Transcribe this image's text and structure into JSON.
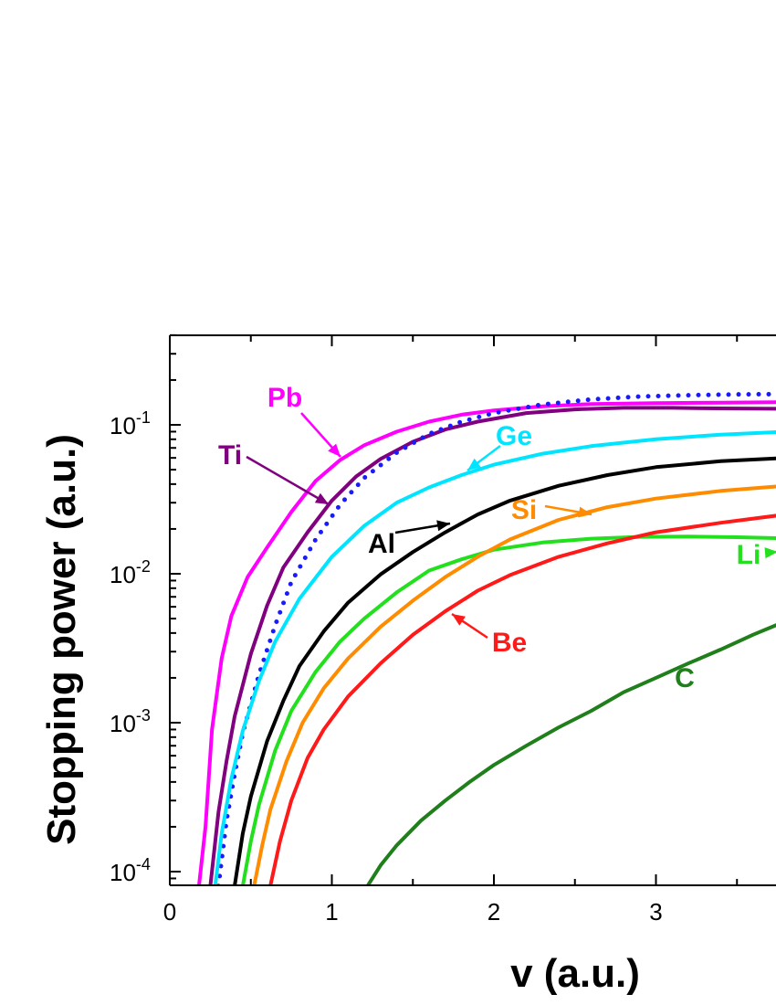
{
  "chart_data": {
    "type": "line",
    "xlabel": "v (a.u.)",
    "ylabel": "Stopping power (a.u.)",
    "xlim": [
      0,
      3.8
    ],
    "ylim": [
      8e-05,
      0.4
    ],
    "yscale": "log",
    "x_ticks": [
      "0",
      "1",
      "2",
      "3"
    ],
    "y_ticks": [
      {
        "base": "10",
        "exp": "-4"
      },
      {
        "base": "10",
        "exp": "-3"
      },
      {
        "base": "10",
        "exp": "-2"
      },
      {
        "base": "10",
        "exp": "-1"
      }
    ],
    "grid": false,
    "series": [
      {
        "name": "Pb",
        "color": "#ff00ff",
        "style": "solid",
        "x": [
          0.18,
          0.22,
          0.26,
          0.32,
          0.38,
          0.48,
          0.6,
          0.75,
          0.9,
          1.05,
          1.2,
          1.4,
          1.6,
          1.8,
          2.0,
          2.3,
          2.6,
          3.0,
          3.4,
          3.8
        ],
        "y": [
          8e-05,
          0.0002,
          0.0009,
          0.0027,
          0.0052,
          0.0095,
          0.015,
          0.026,
          0.042,
          0.058,
          0.073,
          0.09,
          0.105,
          0.117,
          0.125,
          0.133,
          0.138,
          0.14,
          0.141,
          0.142
        ]
      },
      {
        "name": "Ti",
        "color": "#800080",
        "style": "solid",
        "x": [
          0.25,
          0.3,
          0.35,
          0.4,
          0.5,
          0.6,
          0.7,
          0.85,
          1.0,
          1.15,
          1.3,
          1.5,
          1.7,
          1.9,
          2.2,
          2.5,
          2.8,
          3.1,
          3.4,
          3.8
        ],
        "y": [
          8e-05,
          0.00025,
          0.00055,
          0.0011,
          0.0029,
          0.0061,
          0.011,
          0.019,
          0.031,
          0.045,
          0.059,
          0.077,
          0.093,
          0.105,
          0.12,
          0.127,
          0.13,
          0.13,
          0.129,
          0.128
        ]
      },
      {
        "name": "dotted",
        "color": "#1a1aff",
        "style": "dotted",
        "x": [
          0.3,
          0.35,
          0.4,
          0.45,
          0.55,
          0.65,
          0.75,
          0.9,
          1.05,
          1.2,
          1.4,
          1.6,
          1.8,
          2.0,
          2.3,
          2.6,
          2.9,
          3.2,
          3.5,
          3.8
        ],
        "y": [
          8e-05,
          0.00022,
          0.00045,
          0.00085,
          0.0021,
          0.0045,
          0.0088,
          0.017,
          0.029,
          0.044,
          0.065,
          0.087,
          0.105,
          0.12,
          0.137,
          0.148,
          0.155,
          0.158,
          0.16,
          0.161
        ]
      },
      {
        "name": "Ge",
        "color": "#00e5ff",
        "style": "solid",
        "x": [
          0.28,
          0.32,
          0.38,
          0.45,
          0.55,
          0.65,
          0.8,
          1.0,
          1.2,
          1.4,
          1.6,
          1.8,
          2.0,
          2.3,
          2.6,
          3.0,
          3.4,
          3.8
        ],
        "y": [
          8e-05,
          0.00018,
          0.00042,
          0.00088,
          0.0019,
          0.0035,
          0.0068,
          0.013,
          0.021,
          0.03,
          0.038,
          0.046,
          0.054,
          0.064,
          0.072,
          0.08,
          0.086,
          0.09
        ]
      },
      {
        "name": "Al",
        "color": "#000000",
        "style": "solid",
        "x": [
          0.4,
          0.45,
          0.5,
          0.6,
          0.7,
          0.8,
          0.95,
          1.1,
          1.3,
          1.5,
          1.7,
          1.9,
          2.1,
          2.4,
          2.7,
          3.0,
          3.4,
          3.8
        ],
        "y": [
          8e-05,
          0.00018,
          0.00032,
          0.00075,
          0.0014,
          0.0024,
          0.0041,
          0.0064,
          0.0099,
          0.014,
          0.019,
          0.025,
          0.031,
          0.039,
          0.046,
          0.052,
          0.057,
          0.06
        ]
      },
      {
        "name": "Li",
        "color": "#22e01e",
        "style": "solid",
        "x": [
          0.45,
          0.5,
          0.55,
          0.65,
          0.75,
          0.9,
          1.05,
          1.2,
          1.4,
          1.6,
          1.8,
          2.0,
          2.3,
          2.6,
          2.9,
          3.2,
          3.5,
          3.8
        ],
        "y": [
          8e-05,
          0.00016,
          0.00028,
          0.00065,
          0.0012,
          0.0022,
          0.0035,
          0.005,
          0.0075,
          0.0105,
          0.0125,
          0.0145,
          0.0162,
          0.0172,
          0.0177,
          0.0178,
          0.0176,
          0.0173
        ]
      },
      {
        "name": "Si",
        "color": "#ff8c00",
        "style": "solid",
        "x": [
          0.52,
          0.57,
          0.62,
          0.72,
          0.82,
          0.95,
          1.1,
          1.3,
          1.5,
          1.7,
          1.9,
          2.1,
          2.4,
          2.7,
          3.0,
          3.4,
          3.8
        ],
        "y": [
          8e-05,
          0.00015,
          0.00026,
          0.00055,
          0.001,
          0.0017,
          0.0027,
          0.0044,
          0.0066,
          0.0095,
          0.013,
          0.017,
          0.023,
          0.028,
          0.032,
          0.036,
          0.039
        ]
      },
      {
        "name": "Be",
        "color": "#ff1a1a",
        "style": "solid",
        "x": [
          0.62,
          0.68,
          0.75,
          0.85,
          0.95,
          1.1,
          1.3,
          1.5,
          1.7,
          1.9,
          2.1,
          2.4,
          2.7,
          3.0,
          3.4,
          3.8
        ],
        "y": [
          8e-05,
          0.00016,
          0.0003,
          0.00058,
          0.0009,
          0.0015,
          0.0025,
          0.0039,
          0.0056,
          0.0077,
          0.0098,
          0.013,
          0.016,
          0.019,
          0.022,
          0.025
        ]
      },
      {
        "name": "C",
        "color": "#1f7f1a",
        "style": "solid",
        "x": [
          1.22,
          1.3,
          1.4,
          1.55,
          1.7,
          1.85,
          2.0,
          2.2,
          2.4,
          2.6,
          2.8,
          3.0,
          3.2,
          3.4,
          3.6,
          3.8
        ],
        "y": [
          8e-05,
          0.00011,
          0.00015,
          0.00022,
          0.0003,
          0.0004,
          0.00052,
          0.0007,
          0.00093,
          0.0012,
          0.0016,
          0.002,
          0.0025,
          0.0031,
          0.0039,
          0.0048
        ]
      }
    ],
    "annotations": [
      {
        "text": "Pb",
        "series": "Pb",
        "color": "#ff00ff",
        "arrow": true
      },
      {
        "text": "Ti",
        "series": "Ti",
        "color": "#800080",
        "arrow": true
      },
      {
        "text": "Ge",
        "series": "Ge",
        "color": "#00e5ff",
        "arrow": true
      },
      {
        "text": "Al",
        "series": "Al",
        "color": "#000000",
        "arrow": true
      },
      {
        "text": "Si",
        "series": "Si",
        "color": "#ff8c00",
        "arrow": true
      },
      {
        "text": "Li",
        "series": "Li",
        "color": "#22e01e",
        "arrow": true
      },
      {
        "text": "Be",
        "series": "Be",
        "color": "#ff1a1a",
        "arrow": true
      },
      {
        "text": "C",
        "series": "C",
        "color": "#1f7f1a",
        "arrow": false
      }
    ]
  }
}
